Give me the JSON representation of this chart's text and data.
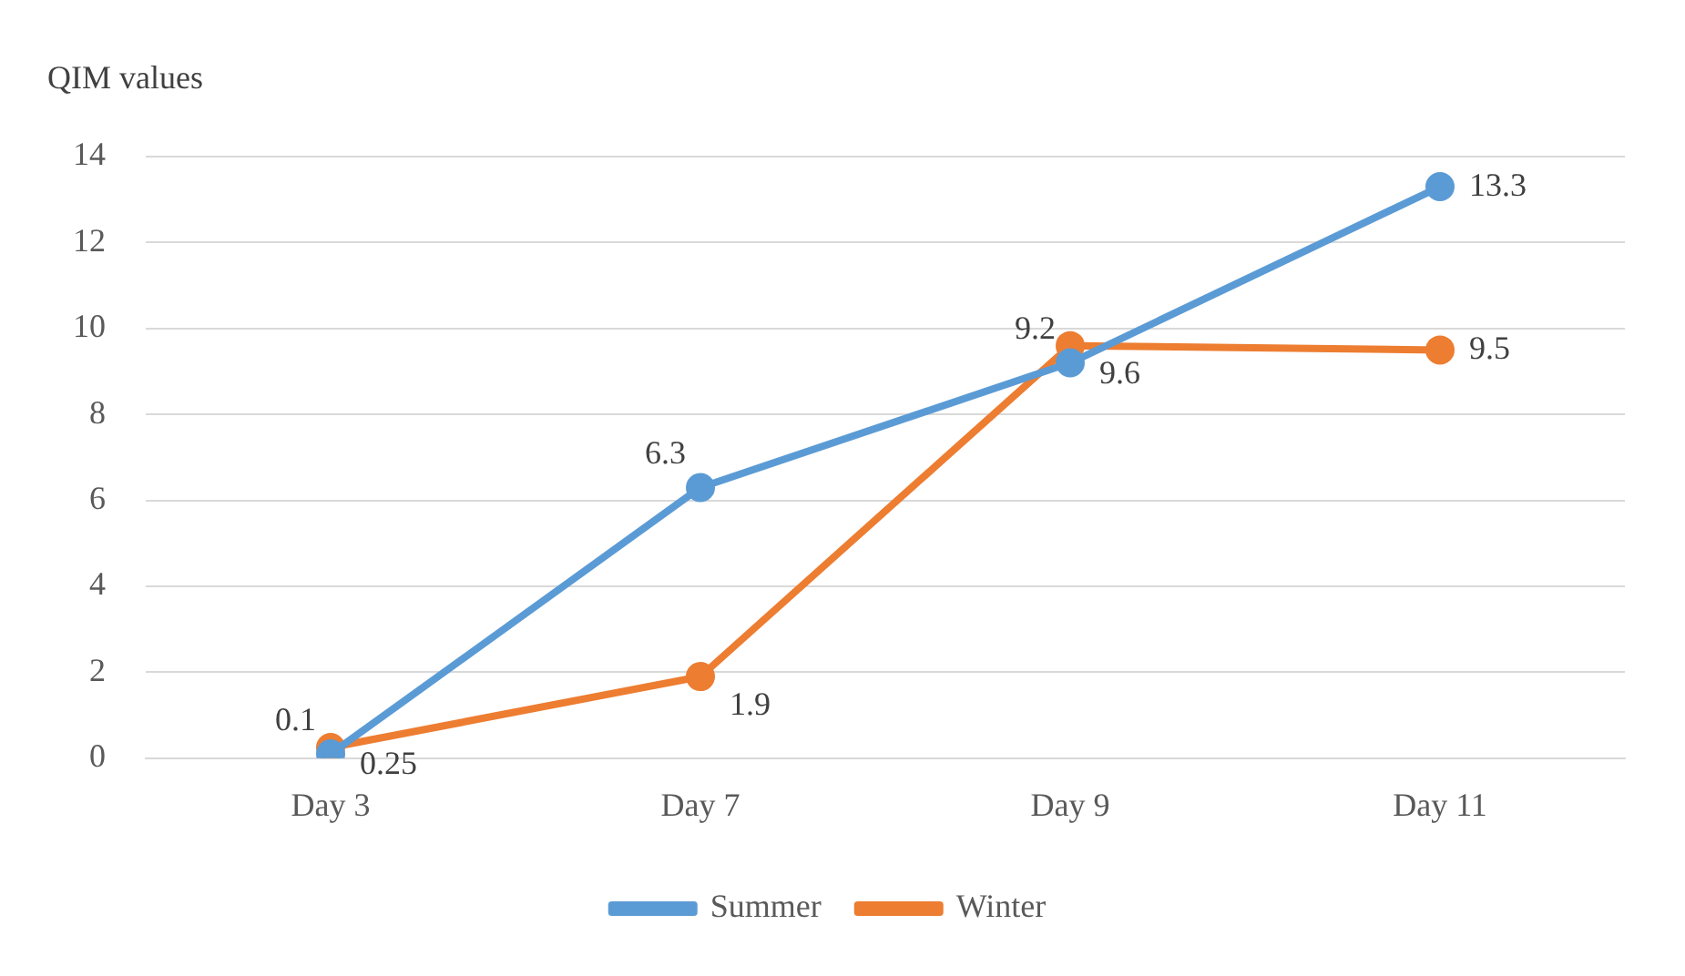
{
  "chart_data": {
    "type": "line",
    "ylabel": "QIM values",
    "categories": [
      "Day 3",
      "Day 7",
      "Day 9",
      "Day 11"
    ],
    "series": [
      {
        "name": "Summer",
        "color": "#5b9bd5",
        "values": [
          0.1,
          6.3,
          9.2,
          13.3
        ]
      },
      {
        "name": "Winter",
        "color": "#ed7d31",
        "values": [
          0.25,
          1.9,
          9.6,
          9.5
        ]
      }
    ],
    "ylim": [
      0,
      14
    ],
    "yticks": [
      0,
      2,
      4,
      6,
      8,
      10,
      12,
      14
    ],
    "grid": "y",
    "legend": "bottom",
    "marker": "circle",
    "line_style": "solid",
    "data_labels": true
  }
}
